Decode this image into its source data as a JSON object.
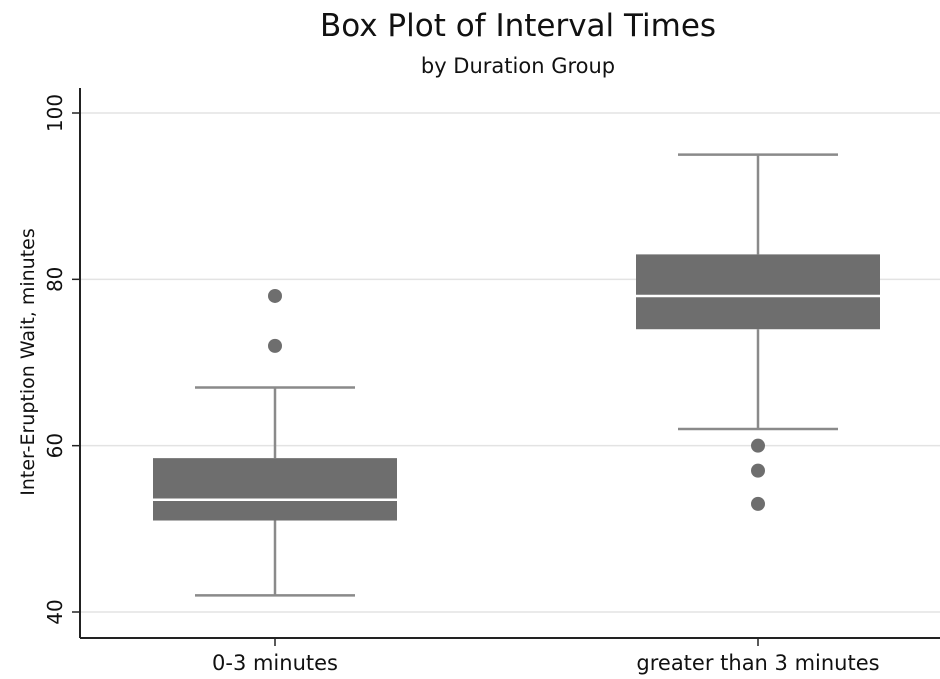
{
  "chart_data": {
    "type": "box",
    "title": "Box Plot of Interval Times",
    "subtitle": "by Duration Group",
    "xlabel": "",
    "ylabel": "Inter-Eruption Wait, minutes",
    "ylim": [
      40,
      100
    ],
    "yticks": [
      "40",
      "60",
      "80",
      "100"
    ],
    "grid": true,
    "categories": [
      "0-3 minutes",
      "greater than 3 minutes"
    ],
    "boxes": [
      {
        "category": "0-3 minutes",
        "whisker_low": 42,
        "q1": 51,
        "median": 53.5,
        "q3": 58.5,
        "whisker_high": 67,
        "outliers": [
          72,
          78
        ]
      },
      {
        "category": "greater than 3 minutes",
        "whisker_low": 62,
        "q1": 74,
        "median": 78,
        "q3": 83,
        "whisker_high": 95,
        "outliers": [
          53,
          57,
          60
        ]
      }
    ],
    "colors": {
      "box": "#6e6e6e",
      "whisker": "#8a8a8a",
      "median": "#ffffff",
      "outlier": "#6e6e6e",
      "grid": "#e3e3e3",
      "axis": "#222222"
    }
  }
}
